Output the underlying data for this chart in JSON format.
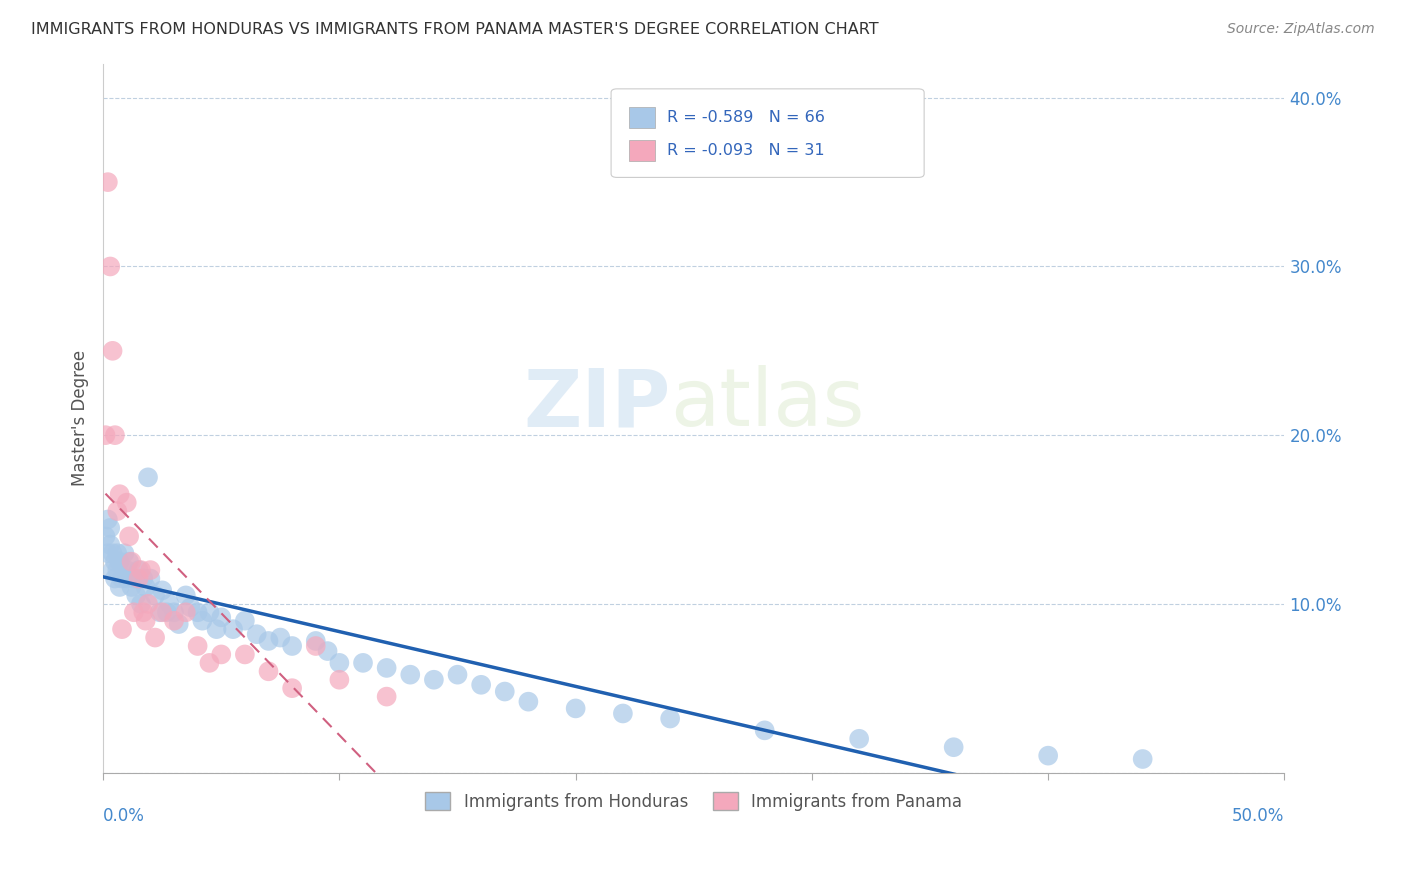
{
  "title": "IMMIGRANTS FROM HONDURAS VS IMMIGRANTS FROM PANAMA MASTER'S DEGREE CORRELATION CHART",
  "source": "Source: ZipAtlas.com",
  "ylabel": "Master's Degree",
  "legend_honduras": "Immigrants from Honduras",
  "legend_panama": "Immigrants from Panama",
  "r_honduras": -0.589,
  "n_honduras": 66,
  "r_panama": -0.093,
  "n_panama": 31,
  "color_honduras": "#a8c8e8",
  "color_panama": "#f4a8bc",
  "trendline_honduras": "#2060b0",
  "trendline_panama": "#d06080",
  "watermark_zip": "ZIP",
  "watermark_atlas": "atlas",
  "xlim": [
    0.0,
    0.5
  ],
  "ylim": [
    0.0,
    0.42
  ],
  "yticks": [
    0.0,
    0.1,
    0.2,
    0.3,
    0.4
  ],
  "ytick_labels": [
    "",
    "10.0%",
    "20.0%",
    "30.0%",
    "40.0%"
  ],
  "honduras_x": [
    0.001,
    0.002,
    0.002,
    0.003,
    0.003,
    0.004,
    0.004,
    0.005,
    0.005,
    0.006,
    0.006,
    0.007,
    0.007,
    0.008,
    0.009,
    0.01,
    0.01,
    0.011,
    0.012,
    0.013,
    0.014,
    0.015,
    0.016,
    0.017,
    0.018,
    0.019,
    0.02,
    0.022,
    0.024,
    0.025,
    0.027,
    0.028,
    0.03,
    0.032,
    0.035,
    0.037,
    0.04,
    0.042,
    0.045,
    0.048,
    0.05,
    0.055,
    0.06,
    0.065,
    0.07,
    0.075,
    0.08,
    0.09,
    0.095,
    0.1,
    0.11,
    0.12,
    0.13,
    0.14,
    0.15,
    0.16,
    0.17,
    0.18,
    0.2,
    0.22,
    0.24,
    0.28,
    0.32,
    0.36,
    0.4,
    0.44
  ],
  "honduras_y": [
    0.14,
    0.15,
    0.13,
    0.145,
    0.135,
    0.13,
    0.12,
    0.125,
    0.115,
    0.13,
    0.12,
    0.125,
    0.11,
    0.115,
    0.13,
    0.12,
    0.115,
    0.125,
    0.11,
    0.115,
    0.105,
    0.12,
    0.1,
    0.115,
    0.11,
    0.175,
    0.115,
    0.105,
    0.095,
    0.108,
    0.095,
    0.1,
    0.095,
    0.088,
    0.105,
    0.098,
    0.095,
    0.09,
    0.095,
    0.085,
    0.092,
    0.085,
    0.09,
    0.082,
    0.078,
    0.08,
    0.075,
    0.078,
    0.072,
    0.065,
    0.065,
    0.062,
    0.058,
    0.055,
    0.058,
    0.052,
    0.048,
    0.042,
    0.038,
    0.035,
    0.032,
    0.025,
    0.02,
    0.015,
    0.01,
    0.008
  ],
  "panama_x": [
    0.001,
    0.002,
    0.003,
    0.004,
    0.005,
    0.006,
    0.007,
    0.008,
    0.01,
    0.011,
    0.012,
    0.013,
    0.015,
    0.016,
    0.017,
    0.018,
    0.019,
    0.02,
    0.022,
    0.025,
    0.03,
    0.035,
    0.04,
    0.045,
    0.05,
    0.06,
    0.07,
    0.08,
    0.09,
    0.1,
    0.12
  ],
  "panama_y": [
    0.2,
    0.35,
    0.3,
    0.25,
    0.2,
    0.155,
    0.165,
    0.085,
    0.16,
    0.14,
    0.125,
    0.095,
    0.115,
    0.12,
    0.095,
    0.09,
    0.1,
    0.12,
    0.08,
    0.095,
    0.09,
    0.095,
    0.075,
    0.065,
    0.07,
    0.07,
    0.06,
    0.05,
    0.075,
    0.055,
    0.045
  ]
}
